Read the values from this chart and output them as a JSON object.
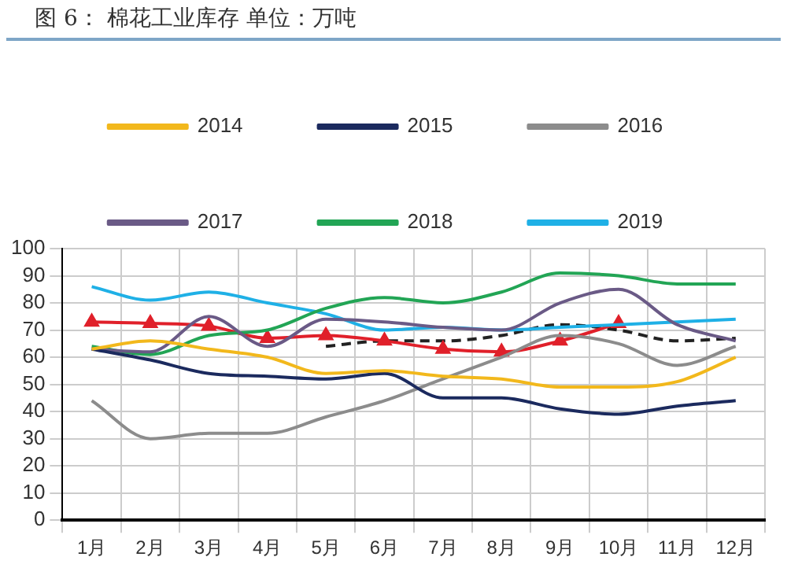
{
  "chart_data": {
    "type": "line",
    "title": "图 6：  棉花工业库存    单位：万吨",
    "categories": [
      "1月",
      "2月",
      "3月",
      "4月",
      "5月",
      "6月",
      "7月",
      "8月",
      "9月",
      "10月",
      "11月",
      "12月"
    ],
    "series": [
      {
        "name": "2014",
        "color": "#f2b81c",
        "values": [
          63,
          66,
          63,
          60,
          54,
          55,
          53,
          52,
          49,
          49,
          51,
          60
        ]
      },
      {
        "name": "2015",
        "color": "#1b2a5e",
        "values": [
          63,
          59,
          54,
          53,
          52,
          54,
          45,
          45,
          41,
          39,
          42,
          44
        ]
      },
      {
        "name": "2016",
        "color": "#8c8c8c",
        "values": [
          44,
          30,
          32,
          32,
          38,
          44,
          52,
          60,
          68,
          65,
          57,
          64
        ]
      },
      {
        "name": "2017",
        "color": "#6a5a86",
        "values": [
          63,
          62,
          75,
          64,
          74,
          73,
          71,
          70,
          80,
          85,
          72,
          66
        ]
      },
      {
        "name": "2018",
        "color": "#22a555",
        "values": [
          64,
          61,
          68,
          70,
          78,
          82,
          80,
          84,
          91,
          90,
          87,
          87
        ]
      },
      {
        "name": "2019",
        "color": "#1fb0e6",
        "values": [
          86,
          81,
          84,
          80,
          76,
          70,
          71,
          70,
          71,
          72,
          73,
          74
        ]
      },
      {
        "color": "#e0202a",
        "marker": "triangle",
        "values": [
          73,
          72.5,
          71.5,
          67,
          68,
          66,
          63,
          62,
          66,
          72.5,
          null,
          null
        ]
      },
      {
        "color": "#222222",
        "line_style": "dashed",
        "values": [
          null,
          null,
          null,
          null,
          64,
          66,
          66,
          68,
          72,
          70,
          66,
          67
        ]
      }
    ],
    "ylim": [
      0,
      100
    ],
    "yticks": [
      0,
      10,
      20,
      30,
      40,
      50,
      60,
      70,
      80,
      90,
      100
    ],
    "grid": true,
    "legend": "top",
    "marker": "none",
    "line_style": "solid"
  }
}
